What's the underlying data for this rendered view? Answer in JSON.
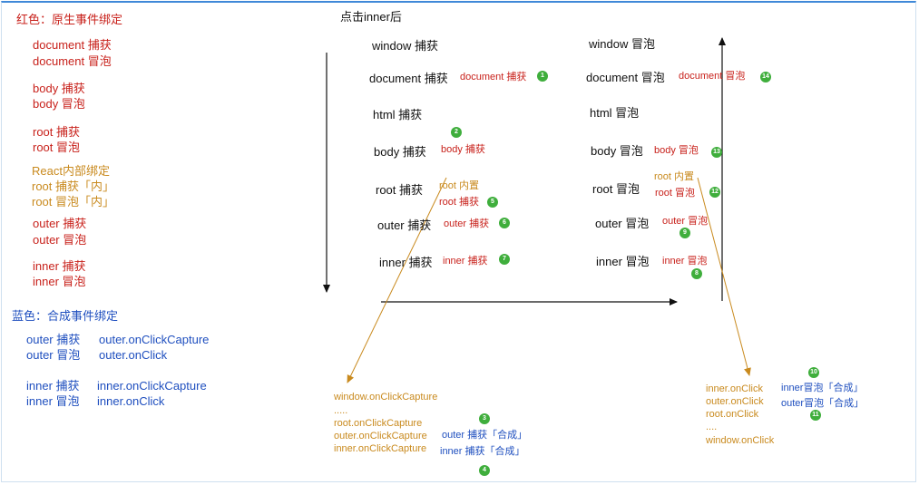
{
  "legend": {
    "native_title": "红色：原生事件绑定",
    "native_items": [
      "document 捕获",
      "document 冒泡",
      "body 捕获",
      "body 冒泡",
      "root 捕获",
      "root 冒泡"
    ],
    "react_internal": [
      "React内部绑定",
      "root 捕获「内」",
      "root 冒泡「内」"
    ],
    "native_items2": [
      "outer 捕获",
      "outer 冒泡",
      "inner 捕获",
      "inner 冒泡"
    ],
    "synthetic_title": "蓝色：合成事件绑定",
    "synthetic_rows": [
      {
        "label": "outer 捕获",
        "handler": "outer.onClickCapture"
      },
      {
        "label": "outer 冒泡",
        "handler": "outer.onClick"
      },
      {
        "label": "inner 捕获",
        "handler": "inner.onClickCapture"
      },
      {
        "label": "inner 冒泡",
        "handler": "inner.onClick"
      }
    ]
  },
  "flow": {
    "heading": "点击inner后",
    "capture_levels": [
      "window 捕获",
      "document 捕获",
      "html 捕获",
      "body 捕获",
      "root 捕获",
      "outer 捕获",
      "inner 捕获"
    ],
    "bubble_levels": [
      "window 冒泡",
      "document 冒泡",
      "html 冒泡",
      "body 冒泡",
      "root 冒泡",
      "outer 冒泡",
      "inner 冒泡"
    ],
    "capture_fired": {
      "document": "document 捕获",
      "body": "body 捕获",
      "root_internal": "root 内置",
      "root": "root 捕获",
      "outer": "outer 捕获",
      "inner": "inner 捕获"
    },
    "bubble_fired": {
      "document": "document 冒泡",
      "body": "body 冒泡",
      "root_internal": "root 内置",
      "root": "root 冒泡",
      "outer": "outer 冒泡",
      "inner": "inner 冒泡"
    },
    "capture_dispatch": [
      "window.onClickCapture",
      ".....",
      "root.onClickCapture",
      "outer.onClickCapture",
      "inner.onClickCapture"
    ],
    "capture_synthetic": [
      "outer 捕获「合成」",
      "inner 捕获「合成」"
    ],
    "bubble_dispatch": [
      "inner.onClick",
      "outer.onClick",
      "root.onClick",
      "....",
      "window.onClick"
    ],
    "bubble_synthetic": [
      "inner冒泡「合成」",
      "outer冒泡「合成」"
    ],
    "badges": [
      "1",
      "2",
      "3",
      "4",
      "5",
      "6",
      "7",
      "8",
      "9",
      "10",
      "11",
      "12",
      "13",
      "14"
    ]
  }
}
